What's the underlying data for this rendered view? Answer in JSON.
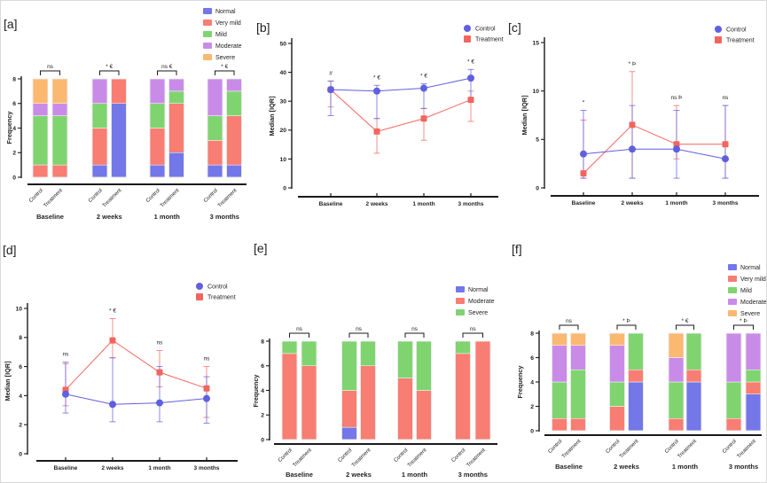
{
  "style": {
    "axis_color": "#1a1a1a",
    "text_color": "#222222",
    "background": "#ffffff"
  },
  "chart_data": [
    {
      "panel": "[a]",
      "type": "bar",
      "ylabel": "Frequency",
      "ylim": [
        0,
        8
      ],
      "yticks": [
        0,
        2,
        4,
        6,
        8
      ],
      "groups": [
        "Baseline",
        "2 weeks",
        "1 month",
        "3 months"
      ],
      "bar_labels": [
        "Control",
        "Treatment"
      ],
      "legend_position": "top-right",
      "categories": [
        "Normal",
        "Very mild",
        "Mild",
        "Moderate",
        "Severe"
      ],
      "colors": [
        "#7377E8",
        "#F87D72",
        "#7FD470",
        "#C98BE8",
        "#FBB871"
      ],
      "stacks": [
        [
          [
            0,
            1,
            4,
            1,
            2
          ],
          [
            0,
            1,
            4,
            1,
            2
          ]
        ],
        [
          [
            1,
            3,
            2,
            2,
            0
          ],
          [
            6,
            2,
            0,
            0,
            0
          ]
        ],
        [
          [
            1,
            3,
            2,
            2,
            0
          ],
          [
            2,
            4,
            1,
            1,
            0
          ]
        ],
        [
          [
            1,
            2,
            2,
            3,
            0
          ],
          [
            1,
            4,
            2,
            1,
            0
          ]
        ]
      ],
      "significance": [
        "ns",
        "* €",
        "ns €",
        "* €"
      ]
    },
    {
      "panel": "[b]",
      "type": "line",
      "ylabel": "Median [IQR]",
      "ylim": [
        0,
        50
      ],
      "yticks": [
        0,
        10,
        20,
        30,
        40,
        50
      ],
      "x": [
        "Baseline",
        "2 weeks",
        "1 month",
        "3 months"
      ],
      "legend_position": "top-right",
      "series": [
        {
          "name": "Control",
          "color": "#5F5FE0",
          "marker": "circle",
          "values": [
            34,
            33.5,
            34.5,
            38
          ],
          "err_low": [
            25,
            24,
            27.5,
            31
          ],
          "err_high": [
            37,
            35.5,
            36,
            41
          ]
        },
        {
          "name": "Treatment",
          "color": "#F2655F",
          "marker": "square",
          "values": [
            34,
            19.5,
            24,
            30.5
          ],
          "err_low": [
            28,
            12,
            16.5,
            23
          ],
          "err_high": [
            37,
            24,
            27.5,
            33.5
          ]
        }
      ],
      "significance": [
        "#",
        "* €",
        "* €",
        "* €"
      ]
    },
    {
      "panel": "[c]",
      "type": "line",
      "ylabel": "Median [IQR]",
      "ylim": [
        0,
        15
      ],
      "yticks": [
        0,
        5,
        10,
        15
      ],
      "x": [
        "Baseline",
        "2 weeks",
        "1 month",
        "3 months"
      ],
      "legend_position": "top-right",
      "series": [
        {
          "name": "Control",
          "color": "#5F5FE0",
          "marker": "circle",
          "values": [
            3.5,
            4,
            4,
            3
          ],
          "err_low": [
            1,
            1,
            1,
            1
          ],
          "err_high": [
            8,
            8.5,
            8,
            8.5
          ]
        },
        {
          "name": "Treatment",
          "color": "#F2655F",
          "marker": "square",
          "values": [
            1.5,
            6.5,
            4.5,
            4.5
          ],
          "err_low": [
            1,
            1,
            3,
            1
          ],
          "err_high": [
            7,
            12,
            8.5,
            8.5
          ]
        }
      ],
      "significance": [
        "*",
        "* Þ",
        "ns Þ",
        "ns"
      ]
    },
    {
      "panel": "[d]",
      "type": "line",
      "ylabel": "Median [IQR]",
      "ylim": [
        0,
        10
      ],
      "yticks": [
        0,
        2,
        4,
        6,
        8,
        10
      ],
      "x": [
        "Baseline",
        "2 weeks",
        "1 month",
        "3 months"
      ],
      "legend_position": "top-right",
      "series": [
        {
          "name": "Control",
          "color": "#5F5FE0",
          "marker": "circle",
          "values": [
            4.1,
            3.4,
            3.5,
            3.8
          ],
          "err_low": [
            2.8,
            2.2,
            2.2,
            2.1
          ],
          "err_high": [
            6.3,
            6.6,
            6.0,
            5.3
          ]
        },
        {
          "name": "Treatment",
          "color": "#F2655F",
          "marker": "square",
          "values": [
            4.4,
            7.8,
            5.6,
            4.5
          ],
          "err_low": [
            3.3,
            6.6,
            4.6,
            2.5
          ],
          "err_high": [
            6.2,
            9.3,
            7.1,
            6.0
          ]
        }
      ],
      "significance": [
        "ns",
        "* €",
        "ns",
        "ns"
      ]
    },
    {
      "panel": "[e]",
      "type": "bar",
      "ylabel": "Frequency",
      "ylim": [
        0,
        8
      ],
      "yticks": [
        0,
        2,
        4,
        6,
        8
      ],
      "groups": [
        "Baseline",
        "2 weeks",
        "1 month",
        "3 months"
      ],
      "bar_labels": [
        "Control",
        "Treatment"
      ],
      "legend_position": "top-right",
      "categories": [
        "Normal",
        "Moderate",
        "Severe"
      ],
      "colors": [
        "#7377E8",
        "#F87D72",
        "#7FD470"
      ],
      "stacks": [
        [
          [
            0,
            7,
            1
          ],
          [
            0,
            6,
            2
          ]
        ],
        [
          [
            1,
            3,
            4
          ],
          [
            0,
            6,
            2
          ]
        ],
        [
          [
            0,
            5,
            3
          ],
          [
            0,
            4,
            4
          ]
        ],
        [
          [
            0,
            7,
            1
          ],
          [
            0,
            8,
            0
          ]
        ]
      ],
      "significance": [
        "ns",
        "ns",
        "ns",
        "ns"
      ]
    },
    {
      "panel": "[f]",
      "type": "bar",
      "ylabel": "Frequency",
      "ylim": [
        0,
        8
      ],
      "yticks": [
        0,
        2,
        4,
        6,
        8
      ],
      "groups": [
        "Baseline",
        "2 weeks",
        "1 month",
        "3 months"
      ],
      "bar_labels": [
        "Control",
        "Treatment"
      ],
      "legend_position": "top-right",
      "categories": [
        "Normal",
        "Very mild",
        "Mild",
        "Moderate",
        "Severe"
      ],
      "colors": [
        "#7377E8",
        "#F87D72",
        "#7FD470",
        "#C98BE8",
        "#FBB871"
      ],
      "stacks": [
        [
          [
            0,
            1,
            3,
            3,
            1
          ],
          [
            0,
            1,
            4,
            2,
            1
          ]
        ],
        [
          [
            0,
            2,
            2,
            3,
            1
          ],
          [
            4,
            1,
            3,
            0,
            0
          ]
        ],
        [
          [
            0,
            1,
            3,
            2,
            2
          ],
          [
            4,
            1,
            3,
            0,
            0
          ]
        ],
        [
          [
            0,
            1,
            3,
            4,
            0
          ],
          [
            3,
            1,
            1,
            3,
            0
          ]
        ]
      ],
      "significance": [
        "ns",
        "* Þ",
        "* €",
        "* Þ"
      ]
    }
  ]
}
